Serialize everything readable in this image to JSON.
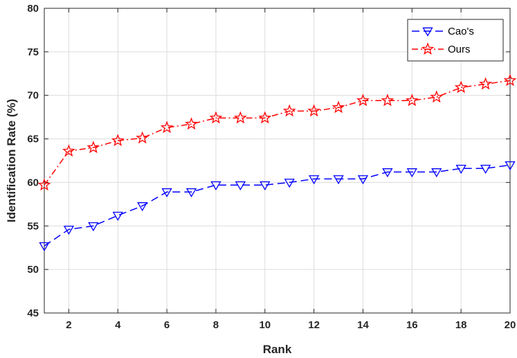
{
  "chart_data": {
    "type": "line",
    "title": "",
    "xlabel": "Rank",
    "ylabel": "Identification Rate (%)",
    "xlim": [
      1,
      20
    ],
    "ylim": [
      45,
      80
    ],
    "xticks": [
      2,
      4,
      6,
      8,
      10,
      12,
      14,
      16,
      18,
      20
    ],
    "yticks": [
      45,
      50,
      55,
      60,
      65,
      70,
      75,
      80
    ],
    "grid": true,
    "legend_position": "top-right",
    "x": [
      1,
      2,
      3,
      4,
      5,
      6,
      7,
      8,
      9,
      10,
      11,
      12,
      13,
      14,
      15,
      16,
      17,
      18,
      19,
      20
    ],
    "series": [
      {
        "name": "Cao's",
        "color": "#0000ff",
        "line_style": "dashed",
        "marker": "triangle-down",
        "values": [
          52.7,
          54.6,
          55.0,
          56.2,
          57.3,
          58.9,
          58.9,
          59.7,
          59.7,
          59.7,
          60.0,
          60.4,
          60.4,
          60.4,
          61.2,
          61.2,
          61.2,
          61.6,
          61.6,
          62.0
        ]
      },
      {
        "name": "Ours",
        "color": "#ff0000",
        "line_style": "dash-dot",
        "marker": "star",
        "values": [
          59.7,
          63.6,
          64.0,
          64.8,
          65.1,
          66.3,
          66.7,
          67.4,
          67.4,
          67.4,
          68.2,
          68.2,
          68.6,
          69.4,
          69.4,
          69.4,
          69.8,
          70.9,
          71.3,
          71.7
        ]
      }
    ]
  }
}
